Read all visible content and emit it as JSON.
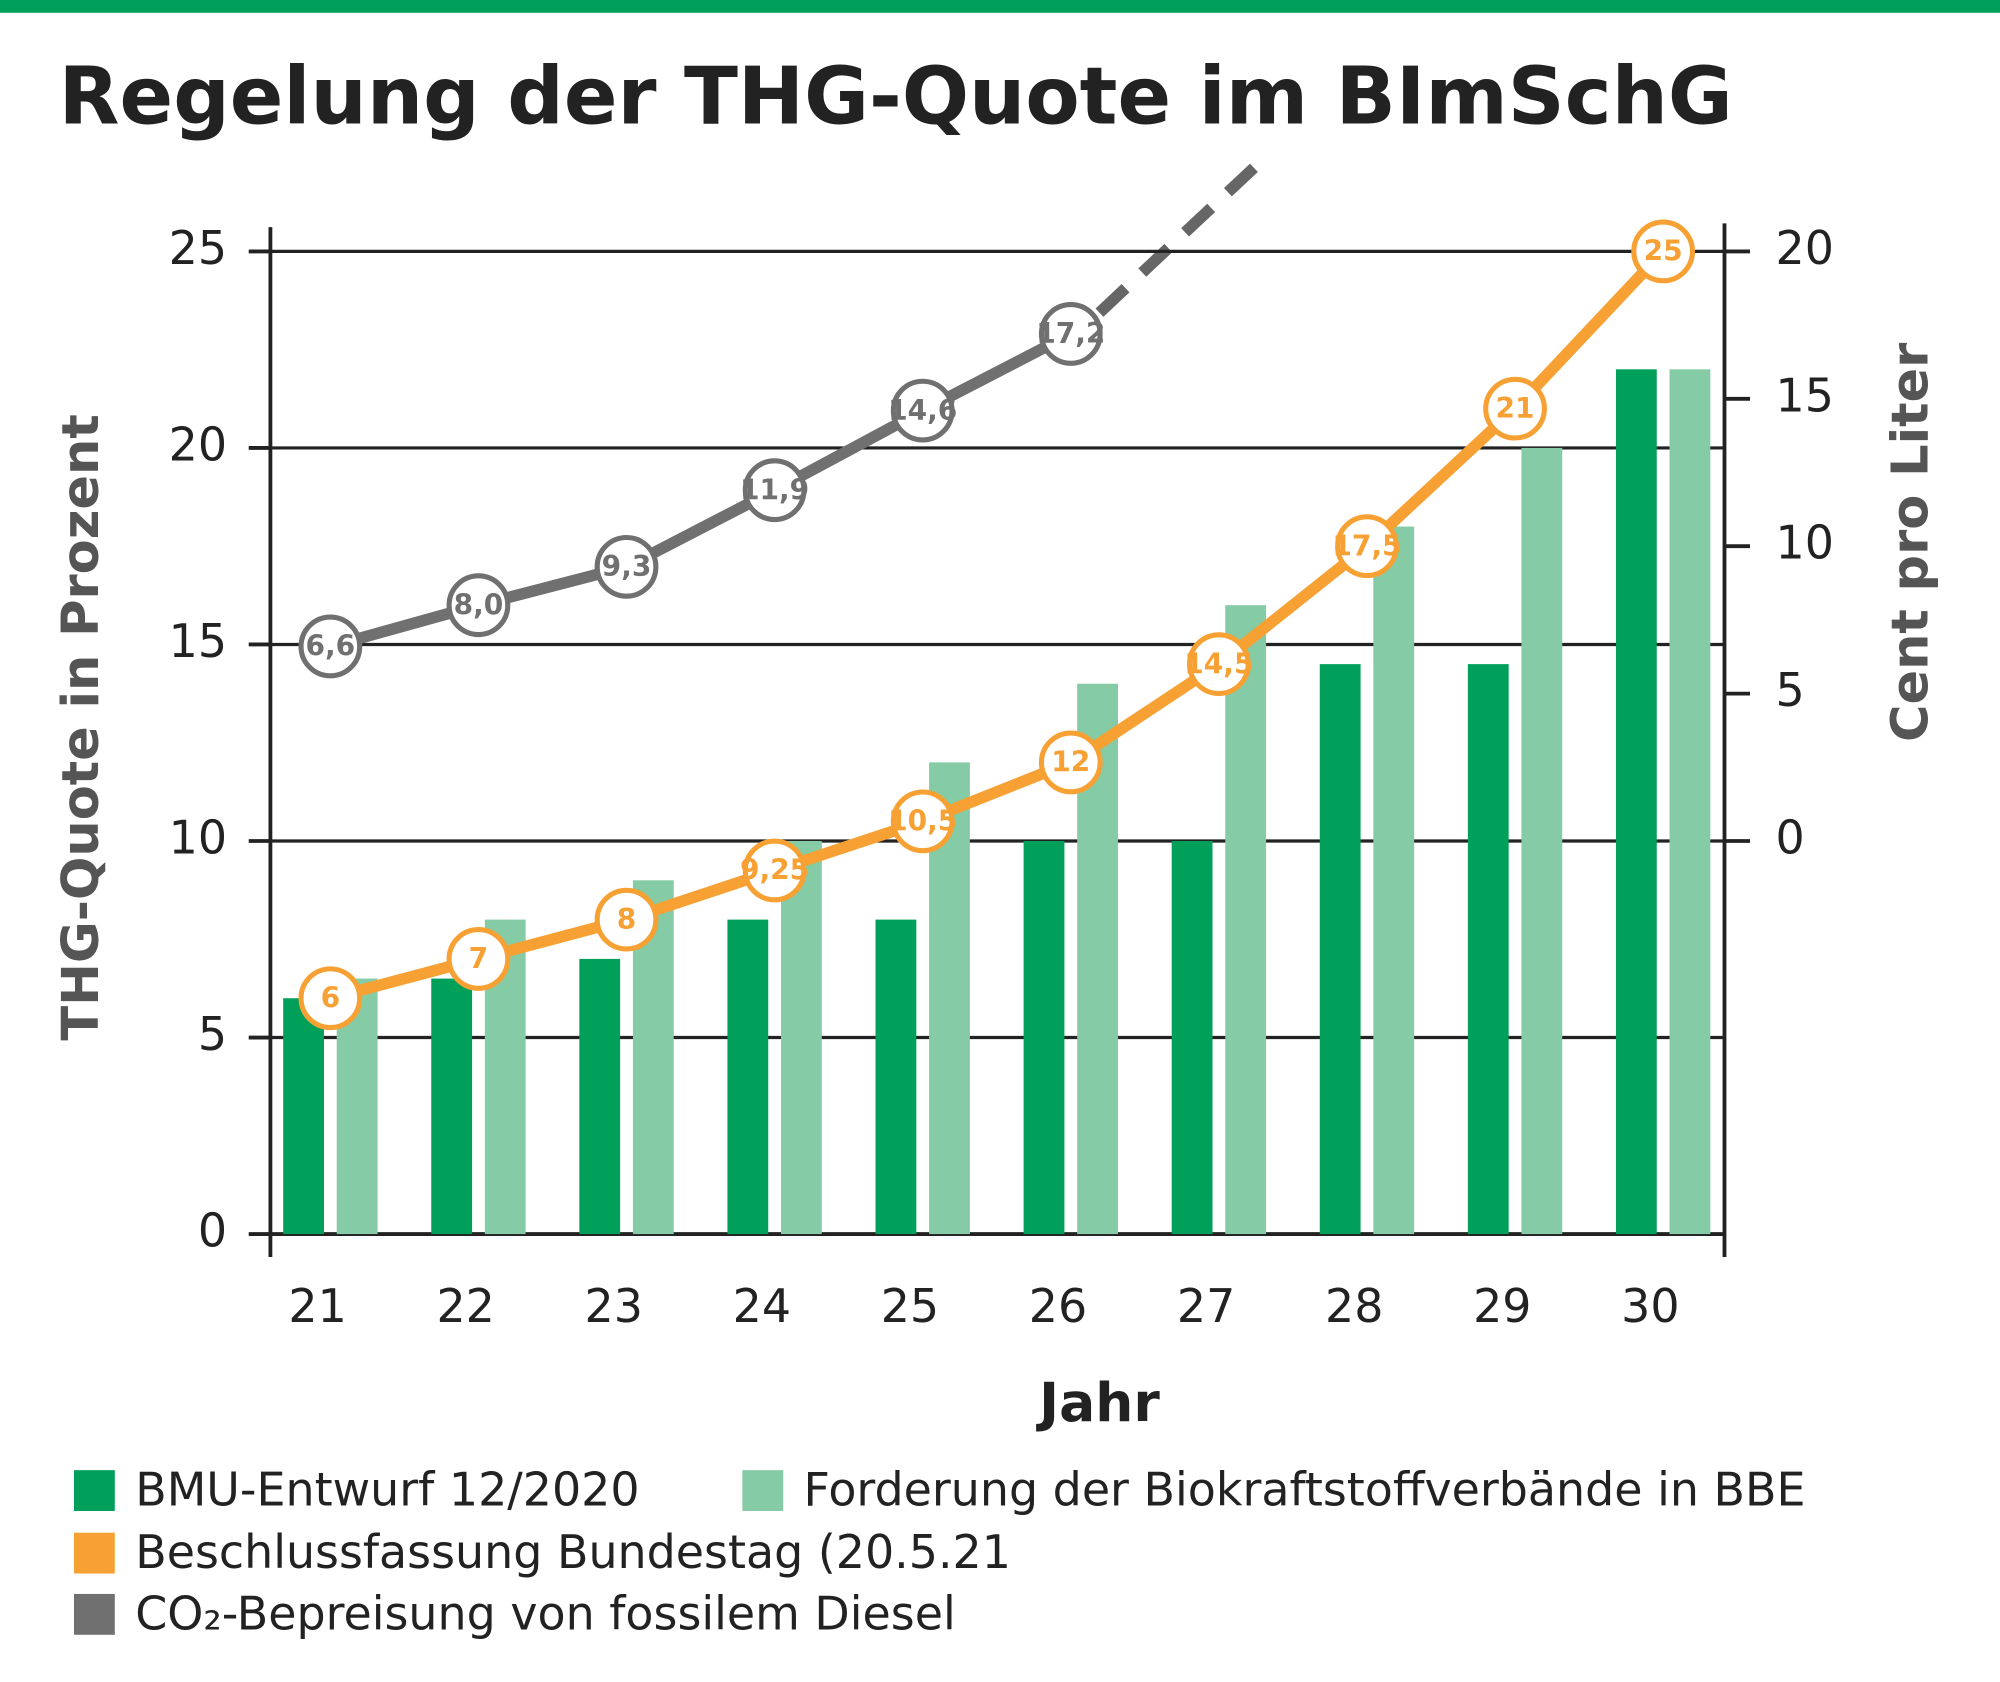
{
  "chart_data": {
    "type": "bar",
    "title": "Regelung der THG-Quote im BImSchG",
    "x_label": "Jahr",
    "y_label": "THG-Quote in Prozent",
    "y2_label": "Cent pro Liter",
    "categories": [
      "21",
      "22",
      "23",
      "24",
      "25",
      "26",
      "27",
      "28",
      "29",
      "30"
    ],
    "series": [
      {
        "name": "BMU-Entwurf 12/2020",
        "color": "#00a05a",
        "type": "bar",
        "values": [
          6,
          6.5,
          7,
          8,
          8,
          10,
          10,
          14.5,
          14.5,
          22
        ]
      },
      {
        "name": "Forderung der Biokraftstoffverbände in BBE",
        "color": "#85cba5",
        "type": "bar",
        "values": [
          6.5,
          8,
          9,
          10,
          12,
          14,
          16,
          18,
          20,
          22
        ]
      },
      {
        "name": "Beschlussfassung Bundestag (20.5.21",
        "color": "#f7a134",
        "type": "line",
        "values": [
          6,
          7,
          8,
          9.25,
          10.5,
          12,
          14.5,
          17.5,
          21,
          25
        ],
        "value_labels": [
          "6",
          "7",
          "8",
          "9,25",
          "10,5",
          "12",
          "14,5",
          "17,5",
          "21",
          "25"
        ]
      },
      {
        "name": "CO₂-Bepreisung von fossilem Diesel",
        "color": "#707070",
        "type": "line",
        "axis": "y2",
        "values": [
          6.6,
          8.0,
          9.3,
          11.9,
          14.6,
          17.2,
          null,
          null,
          null,
          null
        ],
        "value_labels": [
          "6,6",
          "8,0",
          "9,3",
          "11,9",
          "14,6",
          "17,2",
          null,
          null,
          null,
          null
        ]
      }
    ],
    "ylim": [
      0,
      25
    ],
    "yticks": [
      0,
      5,
      10,
      15,
      20,
      25
    ],
    "y2lim": [
      -13.333,
      20
    ],
    "y2ticks": [
      0,
      5,
      10,
      15,
      20
    ],
    "grid": true
  }
}
